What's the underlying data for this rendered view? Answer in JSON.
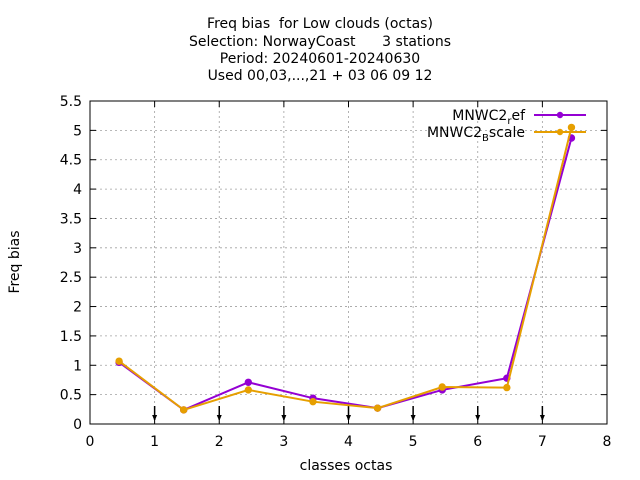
{
  "chart_data": {
    "type": "line",
    "title_lines": [
      "Freq bias  for Low clouds (octas)",
      "Selection: NorwayCoast      3 stations",
      "Period: 20240601-20240630",
      "Used 00,03,...,21 + 03 06 09 12"
    ],
    "xlabel": "classes octas",
    "ylabel": "Freq bias",
    "xlim": [
      0,
      8
    ],
    "ylim": [
      0,
      5.5
    ],
    "xticks": [
      "0",
      "1",
      "2",
      "3",
      "4",
      "5",
      "6",
      "7",
      "8"
    ],
    "yticks": [
      "0",
      "0.5",
      "1",
      "1.5",
      "2",
      "2.5",
      "3",
      "3.5",
      "4",
      "4.5",
      "5",
      "5.5"
    ],
    "grid": true,
    "legend_position": "top-right",
    "series": [
      {
        "name_base": "MNWC2",
        "name_sub": "r",
        "name_rest": "ef",
        "color": "#9400d3",
        "x": [
          0.45,
          1.45,
          2.45,
          3.45,
          4.45,
          5.45,
          6.45,
          7.45
        ],
        "y": [
          1.05,
          0.24,
          0.71,
          0.44,
          0.27,
          0.58,
          0.78,
          4.87
        ]
      },
      {
        "name_base": "MNWC2",
        "name_sub": "B",
        "name_rest": "scale",
        "color": "#e69f00",
        "x": [
          0.45,
          1.45,
          2.45,
          3.45,
          4.45,
          5.45,
          6.45,
          7.45
        ],
        "y": [
          1.07,
          0.24,
          0.58,
          0.38,
          0.27,
          0.63,
          0.62,
          5.05
        ]
      }
    ],
    "arrow_markers_x": [
      1,
      2,
      3,
      4,
      5,
      6,
      7
    ]
  }
}
